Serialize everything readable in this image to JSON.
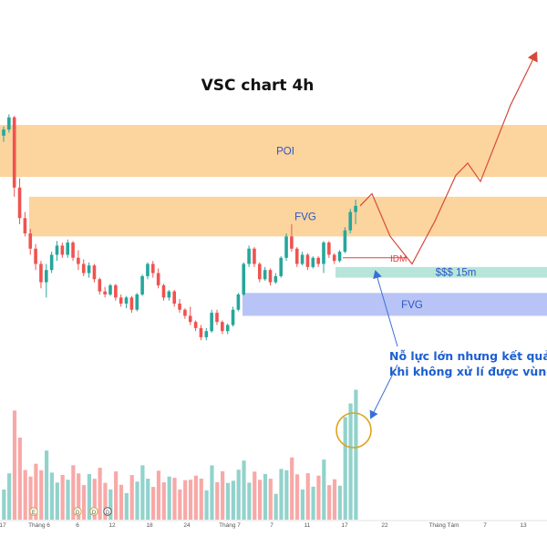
{
  "chart_data": {
    "type": "candlestick",
    "title": "VSC chart 4h",
    "x_tick_labels": [
      "17",
      "Tháng 6",
      "6",
      "12",
      "18",
      "24",
      "Tháng 7",
      "7",
      "11",
      "17",
      "22",
      "Tháng Tám",
      "7",
      "13"
    ],
    "candles": [
      {
        "o": 15.2,
        "h": 15.5,
        "l": 15.0,
        "c": 15.4
      },
      {
        "o": 15.4,
        "h": 15.9,
        "l": 15.3,
        "c": 15.8
      },
      {
        "o": 15.8,
        "h": 15.85,
        "l": 13.2,
        "c": 13.5
      },
      {
        "o": 13.5,
        "h": 13.8,
        "l": 12.3,
        "c": 12.5
      },
      {
        "o": 12.5,
        "h": 12.7,
        "l": 11.9,
        "c": 12.0
      },
      {
        "o": 12.0,
        "h": 12.15,
        "l": 11.3,
        "c": 11.5
      },
      {
        "o": 11.5,
        "h": 11.65,
        "l": 10.8,
        "c": 11.0
      },
      {
        "o": 11.0,
        "h": 11.1,
        "l": 10.2,
        "c": 10.4
      },
      {
        "o": 10.4,
        "h": 11.0,
        "l": 9.9,
        "c": 10.8
      },
      {
        "o": 10.8,
        "h": 11.4,
        "l": 10.7,
        "c": 11.3
      },
      {
        "o": 11.3,
        "h": 11.75,
        "l": 11.1,
        "c": 11.6
      },
      {
        "o": 11.6,
        "h": 11.7,
        "l": 11.2,
        "c": 11.3
      },
      {
        "o": 11.3,
        "h": 11.8,
        "l": 11.2,
        "c": 11.7
      },
      {
        "o": 11.7,
        "h": 11.75,
        "l": 11.1,
        "c": 11.2
      },
      {
        "o": 11.2,
        "h": 11.45,
        "l": 10.8,
        "c": 11.0
      },
      {
        "o": 11.0,
        "h": 11.15,
        "l": 10.6,
        "c": 10.7
      },
      {
        "o": 10.7,
        "h": 11.05,
        "l": 10.55,
        "c": 10.95
      },
      {
        "o": 10.95,
        "h": 11.0,
        "l": 10.4,
        "c": 10.5
      },
      {
        "o": 10.5,
        "h": 10.55,
        "l": 10.0,
        "c": 10.1
      },
      {
        "o": 10.1,
        "h": 10.25,
        "l": 9.9,
        "c": 10.0
      },
      {
        "o": 10.0,
        "h": 10.35,
        "l": 9.95,
        "c": 10.3
      },
      {
        "o": 10.3,
        "h": 10.35,
        "l": 9.8,
        "c": 9.9
      },
      {
        "o": 9.9,
        "h": 10.0,
        "l": 9.6,
        "c": 9.7
      },
      {
        "o": 9.7,
        "h": 9.95,
        "l": 9.55,
        "c": 9.9
      },
      {
        "o": 9.9,
        "h": 9.95,
        "l": 9.4,
        "c": 9.5
      },
      {
        "o": 9.5,
        "h": 10.05,
        "l": 9.45,
        "c": 10.0
      },
      {
        "o": 10.0,
        "h": 10.65,
        "l": 9.95,
        "c": 10.6
      },
      {
        "o": 10.6,
        "h": 11.05,
        "l": 10.5,
        "c": 11.0
      },
      {
        "o": 11.0,
        "h": 11.1,
        "l": 10.55,
        "c": 10.7
      },
      {
        "o": 10.7,
        "h": 10.85,
        "l": 10.2,
        "c": 10.3
      },
      {
        "o": 10.3,
        "h": 10.35,
        "l": 9.8,
        "c": 9.9
      },
      {
        "o": 9.9,
        "h": 10.15,
        "l": 9.8,
        "c": 10.1
      },
      {
        "o": 10.1,
        "h": 10.15,
        "l": 9.6,
        "c": 9.7
      },
      {
        "o": 9.7,
        "h": 9.85,
        "l": 9.4,
        "c": 9.5
      },
      {
        "o": 9.5,
        "h": 9.55,
        "l": 9.2,
        "c": 9.3
      },
      {
        "o": 9.3,
        "h": 9.6,
        "l": 9.0,
        "c": 9.1
      },
      {
        "o": 9.1,
        "h": 9.15,
        "l": 8.8,
        "c": 8.9
      },
      {
        "o": 8.9,
        "h": 9.0,
        "l": 8.5,
        "c": 8.6
      },
      {
        "o": 8.6,
        "h": 8.9,
        "l": 8.5,
        "c": 8.8
      },
      {
        "o": 8.8,
        "h": 9.5,
        "l": 8.75,
        "c": 9.4
      },
      {
        "o": 9.4,
        "h": 9.5,
        "l": 9.0,
        "c": 9.1
      },
      {
        "o": 9.1,
        "h": 9.15,
        "l": 8.7,
        "c": 8.8
      },
      {
        "o": 8.8,
        "h": 9.05,
        "l": 8.7,
        "c": 9.0
      },
      {
        "o": 9.0,
        "h": 9.6,
        "l": 8.95,
        "c": 9.5
      },
      {
        "o": 9.5,
        "h": 10.05,
        "l": 9.45,
        "c": 10.0
      },
      {
        "o": 10.0,
        "h": 11.05,
        "l": 9.95,
        "c": 11.0
      },
      {
        "o": 11.0,
        "h": 11.6,
        "l": 10.9,
        "c": 11.5
      },
      {
        "o": 11.5,
        "h": 11.55,
        "l": 10.9,
        "c": 11.0
      },
      {
        "o": 11.0,
        "h": 11.05,
        "l": 10.4,
        "c": 10.5
      },
      {
        "o": 10.5,
        "h": 10.9,
        "l": 10.45,
        "c": 10.8
      },
      {
        "o": 10.8,
        "h": 10.85,
        "l": 10.3,
        "c": 10.4
      },
      {
        "o": 10.4,
        "h": 10.7,
        "l": 10.35,
        "c": 10.6
      },
      {
        "o": 10.6,
        "h": 11.25,
        "l": 10.55,
        "c": 11.2
      },
      {
        "o": 11.2,
        "h": 12.0,
        "l": 11.1,
        "c": 11.9
      },
      {
        "o": 11.9,
        "h": 12.3,
        "l": 11.4,
        "c": 11.5
      },
      {
        "o": 11.5,
        "h": 11.55,
        "l": 10.9,
        "c": 11.0
      },
      {
        "o": 11.0,
        "h": 11.4,
        "l": 10.95,
        "c": 11.3
      },
      {
        "o": 11.3,
        "h": 11.35,
        "l": 10.8,
        "c": 10.9
      },
      {
        "o": 10.9,
        "h": 11.25,
        "l": 10.85,
        "c": 11.2
      },
      {
        "o": 11.2,
        "h": 11.25,
        "l": 10.9,
        "c": 11.0
      },
      {
        "o": 11.0,
        "h": 11.75,
        "l": 10.7,
        "c": 11.7
      },
      {
        "o": 11.7,
        "h": 11.75,
        "l": 11.2,
        "c": 11.3
      },
      {
        "o": 11.3,
        "h": 11.35,
        "l": 11.0,
        "c": 11.1
      },
      {
        "o": 11.1,
        "h": 11.45,
        "l": 11.05,
        "c": 11.4
      },
      {
        "o": 11.4,
        "h": 12.2,
        "l": 11.35,
        "c": 12.1
      },
      {
        "o": 12.1,
        "h": 12.8,
        "l": 12.0,
        "c": 12.7
      },
      {
        "o": 12.7,
        "h": 13.1,
        "l": 12.3,
        "c": 12.9
      }
    ],
    "volume_colors_from_candle_direction": true,
    "up_color": "#26a69a",
    "down_color": "#ef5350",
    "zones": [
      {
        "label": "POI",
        "y_from": 13.85,
        "y_to": 15.55,
        "color": "#f7b04f"
      },
      {
        "label": "FVG",
        "y_from": 11.9,
        "y_to": 13.2,
        "color": "#f7b04f"
      },
      {
        "label": "$$$ 15m",
        "y_from": 10.55,
        "y_to": 10.9,
        "color": "#7ccfba"
      },
      {
        "label": "FVG",
        "y_from": 9.3,
        "y_to": 10.05,
        "color": "#7f94ef"
      }
    ],
    "idm": {
      "label": "IDM",
      "y": 11.2,
      "color": "#e04040"
    },
    "projection": {
      "color": "#d64a3c",
      "y_values": [
        12.9,
        13.3,
        11.9,
        11.0,
        12.4,
        13.9,
        14.3,
        13.7,
        16.2,
        17.9
      ]
    },
    "annotation": "Nỗ lực lớn nhưng kết quả khi không  xử lí được vùng",
    "annotation_lines": [
      "Nỗ lực lớn nhưng kết quả",
      "khi không  xử lí được vùng"
    ],
    "event_markers": [
      "E",
      "D",
      "D",
      "D"
    ]
  }
}
